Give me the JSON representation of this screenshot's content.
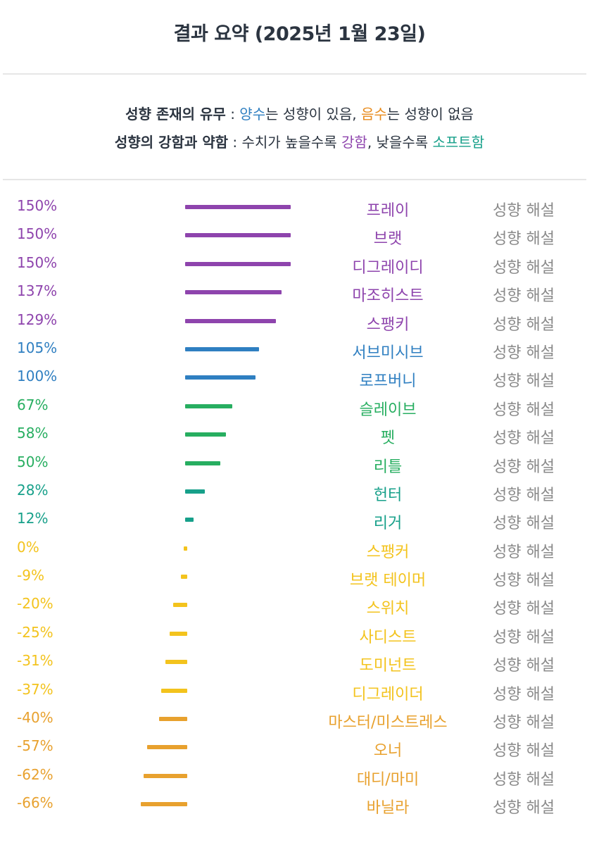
{
  "title": "결과 요약 (2025년 1월 23일)",
  "legend": {
    "line1": {
      "label": "성향 존재의 유무",
      "sep": " : ",
      "positive_word": "양수",
      "positive_text": "는 성향이 있음, ",
      "negative_word": "음수",
      "negative_text": "는 성향이 없음"
    },
    "line2": {
      "label": "성향의 강함과 약함",
      "sep": " : 수치가 높을수록 ",
      "strong_word": "강함",
      "mid_text": ", 낮을수록 ",
      "soft_word": "소프트함"
    }
  },
  "colors": {
    "purple": "#8e44ad",
    "blue": "#2f7fc1",
    "green": "#27ae60",
    "teal": "#17a08a",
    "yellow": "#f3c31d",
    "orange": "#e8a12e"
  },
  "explain_label": "성향 해설",
  "rows": [
    {
      "pct": "150%",
      "value": 150,
      "name": "프레이",
      "color": "#8e44ad"
    },
    {
      "pct": "150%",
      "value": 150,
      "name": "브랫",
      "color": "#8e44ad"
    },
    {
      "pct": "150%",
      "value": 150,
      "name": "디그레이디",
      "color": "#8e44ad"
    },
    {
      "pct": "137%",
      "value": 137,
      "name": "마조히스트",
      "color": "#8e44ad"
    },
    {
      "pct": "129%",
      "value": 129,
      "name": "스팽키",
      "color": "#8e44ad"
    },
    {
      "pct": "105%",
      "value": 105,
      "name": "서브미시브",
      "color": "#2f7fc1"
    },
    {
      "pct": "100%",
      "value": 100,
      "name": "로프버니",
      "color": "#2f7fc1"
    },
    {
      "pct": "67%",
      "value": 67,
      "name": "슬레이브",
      "color": "#27ae60"
    },
    {
      "pct": "58%",
      "value": 58,
      "name": "펫",
      "color": "#27ae60"
    },
    {
      "pct": "50%",
      "value": 50,
      "name": "리틀",
      "color": "#27ae60"
    },
    {
      "pct": "28%",
      "value": 28,
      "name": "헌터",
      "color": "#17a08a"
    },
    {
      "pct": "12%",
      "value": 12,
      "name": "리거",
      "color": "#17a08a"
    },
    {
      "pct": "0%",
      "value": 0,
      "name": "스팽커",
      "color": "#f3c31d"
    },
    {
      "pct": "-9%",
      "value": -9,
      "name": "브랫 테이머",
      "color": "#f3c31d"
    },
    {
      "pct": "-20%",
      "value": -20,
      "name": "스위치",
      "color": "#f3c31d"
    },
    {
      "pct": "-25%",
      "value": -25,
      "name": "사디스트",
      "color": "#f3c31d"
    },
    {
      "pct": "-31%",
      "value": -31,
      "name": "도미넌트",
      "color": "#f3c31d"
    },
    {
      "pct": "-37%",
      "value": -37,
      "name": "디그레이더",
      "color": "#f3c31d"
    },
    {
      "pct": "-40%",
      "value": -40,
      "name": "마스터/미스트레스",
      "color": "#e8a12e"
    },
    {
      "pct": "-57%",
      "value": -57,
      "name": "오너",
      "color": "#e8a12e"
    },
    {
      "pct": "-62%",
      "value": -62,
      "name": "대디/마미",
      "color": "#e8a12e"
    },
    {
      "pct": "-66%",
      "value": -66,
      "name": "바닐라",
      "color": "#e8a12e"
    }
  ]
}
